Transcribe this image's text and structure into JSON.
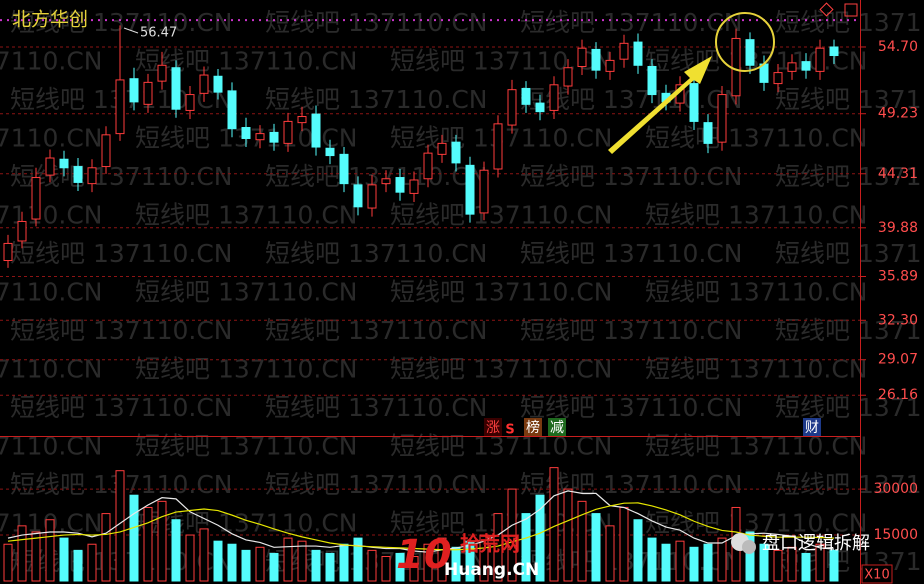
{
  "chart_data": [
    {
      "type": "candlestick",
      "title": "北方华创",
      "watermark": "短线吧 137110.CN",
      "up_color": "#ff3c3c",
      "down_color": "#54fcfc",
      "ylim": [
        22.9,
        58.55
      ],
      "yticks": [
        {
          "value": 54.7,
          "label": "54.70"
        },
        49.23,
        44.31,
        39.88,
        35.89,
        {
          "value": 32.3,
          "label": "32.30"
        },
        29.07,
        26.16
      ],
      "grid": true,
      "hline": {
        "value": 56.9,
        "color": "#cc33cc"
      },
      "open": [
        37.2,
        38.8,
        40.6,
        44.2,
        45.5,
        44.9,
        43.5,
        44.9,
        47.6,
        52.1,
        50.0,
        51.9,
        53.0,
        49.5,
        50.9,
        52.3,
        51.1,
        48.1,
        47.1,
        47.7,
        46.8,
        48.5,
        49.2,
        46.4,
        45.9,
        43.4,
        41.5,
        43.5,
        44.0,
        42.7,
        43.9,
        45.9,
        46.9,
        45.0,
        41.1,
        44.7,
        48.3,
        51.3,
        50.1,
        49.5,
        51.5,
        53.1,
        54.5,
        52.7,
        53.7,
        55.1,
        53.1,
        50.9,
        50.1,
        51.7,
        48.5,
        46.9,
        50.7,
        55.3,
        53.3,
        51.7,
        52.7,
        53.5,
        52.7,
        54.7
      ],
      "high": [
        39.3,
        41.2,
        44.8,
        46.3,
        46.2,
        45.6,
        45.5,
        48.2,
        56.47,
        53.0,
        52.5,
        54.3,
        53.6,
        51.5,
        53.1,
        52.9,
        51.8,
        48.9,
        48.3,
        48.4,
        49.3,
        49.8,
        49.9,
        47.1,
        46.5,
        44.1,
        44.2,
        44.6,
        44.7,
        44.5,
        46.7,
        47.5,
        47.5,
        45.7,
        45.3,
        49.1,
        52.0,
        51.9,
        50.8,
        52.3,
        53.7,
        55.3,
        55.1,
        54.3,
        55.7,
        55.8,
        53.7,
        51.6,
        52.3,
        52.4,
        49.2,
        51.5,
        56.2,
        55.9,
        54.0,
        53.3,
        54.1,
        54.2,
        55.3,
        55.3
      ],
      "low": [
        36.6,
        38.2,
        40.0,
        43.6,
        44.1,
        42.9,
        42.8,
        44.3,
        47.0,
        49.5,
        49.3,
        51.2,
        48.9,
        48.8,
        50.2,
        50.4,
        47.3,
        46.5,
        46.4,
        46.2,
        46.1,
        47.8,
        45.8,
        45.1,
        42.8,
        40.9,
        40.8,
        42.8,
        42.1,
        42.0,
        43.2,
        45.2,
        44.5,
        40.3,
        40.5,
        44.0,
        47.6,
        49.3,
        48.7,
        48.8,
        50.8,
        52.4,
        52.1,
        52.0,
        53.0,
        52.5,
        50.1,
        49.5,
        49.4,
        47.9,
        46.0,
        46.2,
        50.0,
        52.5,
        51.1,
        51.0,
        52.0,
        52.1,
        52.0,
        53.3
      ],
      "close": [
        38.6,
        40.4,
        44.0,
        45.6,
        44.8,
        43.6,
        44.8,
        47.5,
        52.0,
        50.2,
        51.8,
        53.2,
        49.6,
        50.8,
        52.4,
        51.0,
        48.0,
        47.2,
        47.6,
        46.9,
        48.6,
        49.0,
        46.5,
        45.8,
        43.5,
        41.6,
        43.4,
        43.9,
        42.8,
        43.8,
        46.0,
        46.8,
        45.2,
        41.0,
        44.6,
        48.4,
        51.2,
        50.0,
        49.4,
        51.6,
        53.0,
        54.6,
        52.8,
        53.6,
        55.0,
        53.2,
        50.8,
        50.2,
        51.6,
        48.6,
        46.8,
        50.8,
        55.4,
        53.2,
        51.8,
        52.6,
        53.4,
        52.8,
        54.6,
        54.0
      ],
      "events": [
        {
          "label": "涨",
          "color": "#ff4040",
          "bg": "#3a0000"
        },
        {
          "label": "S",
          "color": "#ff3030",
          "bg": "#000"
        },
        {
          "label": "榜",
          "color": "#ffffff",
          "bg": "#7a3a10"
        },
        {
          "label": "减",
          "color": "#ffffff",
          "bg": "#1e6a1e"
        },
        {
          "label": "财",
          "color": "#ffffff",
          "bg": "#1e3a8a"
        }
      ]
    },
    {
      "type": "volume",
      "unit": "X10",
      "ylim": [
        0,
        47000
      ],
      "yticks": [
        30000,
        15000
      ],
      "values": [
        12000,
        18000,
        16000,
        20000,
        14000,
        10000,
        12000,
        22000,
        36000,
        28000,
        24000,
        26000,
        20000,
        15000,
        17000,
        13000,
        12000,
        10000,
        11000,
        9000,
        14000,
        13000,
        10000,
        9000,
        12000,
        14000,
        10000,
        8000,
        9000,
        8000,
        12000,
        14000,
        11000,
        13000,
        15000,
        22000,
        30000,
        22000,
        28000,
        37000,
        30000,
        26000,
        22000,
        18000,
        24000,
        20000,
        14000,
        12000,
        13000,
        11000,
        12000,
        14000,
        24000,
        16000,
        12000,
        10000,
        11000,
        9000,
        12000,
        10000
      ],
      "ma_lines": [
        {
          "color": "#e8e8e8",
          "values": [
            14000,
            15000,
            15500,
            16000,
            16000,
            15600,
            14400,
            15600,
            18800,
            22000,
            24800,
            27200,
            26800,
            22600,
            20400,
            18200,
            15400,
            13400,
            12600,
            11000,
            11200,
            11400,
            11400,
            11000,
            11600,
            11600,
            11000,
            10600,
            10600,
            9800,
            9400,
            10200,
            10800,
            11600,
            13000,
            15000,
            18200,
            20200,
            23400,
            27800,
            29400,
            28600,
            28600,
            24600,
            24000,
            22000,
            19600,
            17600,
            16600,
            14000,
            12400,
            12400,
            14800,
            15400,
            15600,
            15200,
            14600,
            12400,
            10800,
            10400
          ]
        },
        {
          "color": "#e6e600",
          "values": [
            13000,
            13500,
            14000,
            14500,
            15000,
            15200,
            15000,
            15200,
            16000,
            17500,
            19000,
            21000,
            22500,
            23000,
            23500,
            23000,
            21500,
            19800,
            18500,
            17000,
            15600,
            14400,
            13400,
            12400,
            11800,
            11400,
            11200,
            11000,
            10800,
            10600,
            10400,
            10200,
            10200,
            10400,
            10800,
            11400,
            12800,
            14000,
            15600,
            17800,
            19700,
            21600,
            23400,
            24500,
            25400,
            25500,
            24500,
            23200,
            21600,
            19500,
            17800,
            16500,
            16000,
            15000,
            14600,
            14300,
            14300,
            14300,
            14200,
            14000
          ]
        }
      ]
    }
  ],
  "overlay": {
    "logo_number": "10",
    "logo_name": "拾荒网",
    "logo_url": "Huang.CN",
    "wechat": "盘口逻辑拆解"
  }
}
